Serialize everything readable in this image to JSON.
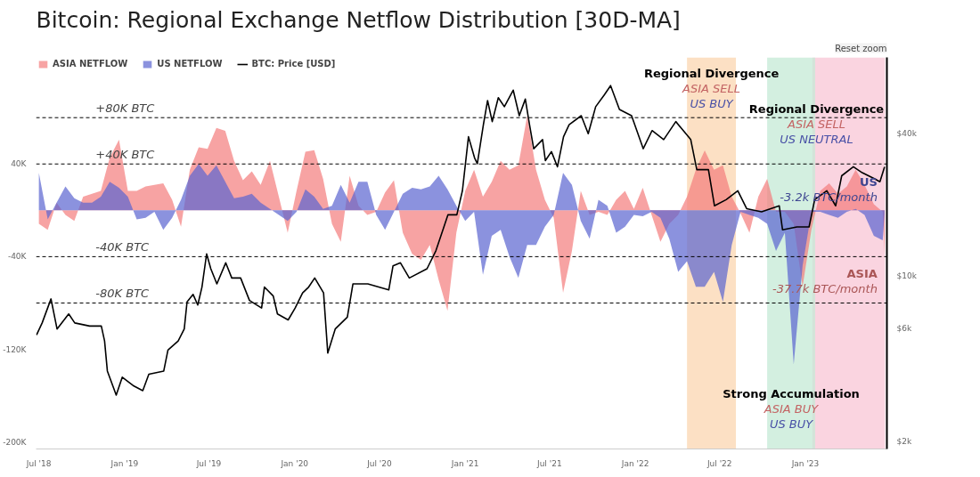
{
  "chart_data": {
    "type": "area",
    "title": "Bitcoin: Regional Exchange Netflow Distribution [30D-MA]",
    "annotations": [
      {
        "text": "US\n-3.2k BTC/month",
        "x": "2023-06-20",
        "y": -3200
      },
      {
        "text": "ASIA\n-37.7k BTC/month",
        "x": "2023-06-20",
        "y": -37700
      },
      "Reset zoom"
    ],
    "x": [
      "2018-07-01",
      "2018-07-20",
      "2018-08-08",
      "2018-08-27",
      "2018-09-15",
      "2018-10-04",
      "2018-10-23",
      "2018-11-11",
      "2018-11-30",
      "2018-12-20",
      "2019-01-08",
      "2019-01-27",
      "2019-02-15",
      "2019-03-06",
      "2019-03-25",
      "2019-04-13",
      "2019-05-02",
      "2019-05-21",
      "2019-06-09",
      "2019-06-28",
      "2019-07-17",
      "2019-08-05",
      "2019-08-24",
      "2019-09-12",
      "2019-10-01",
      "2019-10-20",
      "2019-11-09",
      "2019-11-28",
      "2019-12-17",
      "2020-01-05",
      "2020-01-24",
      "2020-02-12",
      "2020-03-02",
      "2020-03-21",
      "2020-04-09",
      "2020-04-28",
      "2020-05-17",
      "2020-06-05",
      "2020-06-24",
      "2020-07-13",
      "2020-08-01",
      "2020-08-20",
      "2020-09-09",
      "2020-09-28",
      "2020-10-17",
      "2020-11-05",
      "2020-11-24",
      "2020-12-13",
      "2021-01-01",
      "2021-01-20",
      "2021-02-08",
      "2021-02-27",
      "2021-03-18",
      "2021-04-06",
      "2021-04-25",
      "2021-05-14",
      "2021-06-02",
      "2021-06-21",
      "2021-07-10",
      "2021-07-30",
      "2021-08-18",
      "2021-09-06",
      "2021-09-25",
      "2021-10-14",
      "2021-11-02",
      "2021-11-21",
      "2021-12-10",
      "2021-12-29",
      "2022-01-17",
      "2022-02-05",
      "2022-02-24",
      "2022-03-15",
      "2022-04-03",
      "2022-04-22",
      "2022-05-11",
      "2022-05-30",
      "2022-06-19",
      "2022-07-08",
      "2022-07-27",
      "2022-08-15",
      "2022-09-03",
      "2022-09-22",
      "2022-10-11",
      "2022-10-30",
      "2022-11-18",
      "2022-12-07",
      "2022-12-26",
      "2023-01-14",
      "2023-02-02",
      "2023-02-21",
      "2023-03-12",
      "2023-03-31",
      "2023-04-19",
      "2023-05-08",
      "2023-05-28",
      "2023-06-16",
      "2023-06-20"
    ],
    "series": [
      {
        "name": "ASIA NETFLOW",
        "color": "#f47c7c",
        "values": [
          -11700,
          -16800,
          6500,
          -3900,
          -9100,
          11700,
          14200,
          16800,
          45300,
          60900,
          16800,
          16800,
          20700,
          22000,
          23300,
          9100,
          -14200,
          35000,
          54400,
          53100,
          71200,
          68600,
          42700,
          25900,
          33700,
          22000,
          42700,
          11700,
          -19400,
          16800,
          50500,
          52000,
          27200,
          -11700,
          -27200,
          29800,
          3900,
          -3900,
          -1300,
          15500,
          25900,
          -19400,
          -37600,
          -42700,
          -29800,
          -60000,
          -86800,
          -19400,
          16800,
          35000,
          11700,
          24600,
          42700,
          35000,
          38900,
          81600,
          35000,
          9100,
          -6500,
          -71200,
          -35000,
          16800,
          -3900,
          -1300,
          -3900,
          9100,
          16800,
          1300,
          19400,
          -3900,
          -27200,
          -11700,
          -3900,
          11700,
          35000,
          51800,
          35000,
          38900,
          11700,
          -2600,
          -19400,
          11700,
          27200,
          -1300,
          -1300,
          -11700,
          -66000,
          -16800,
          16800,
          23300,
          14200,
          20700,
          35000,
          22000,
          5200,
          -1300,
          -37700
        ]
      },
      {
        "name": "US NETFLOW",
        "color": "#5a64d0",
        "values": [
          32400,
          -7800,
          6500,
          20700,
          10400,
          6500,
          6500,
          11700,
          24600,
          19400,
          11700,
          -7800,
          -6500,
          -1300,
          -16800,
          -6500,
          9100,
          29800,
          40100,
          29800,
          38900,
          24600,
          10400,
          11700,
          14200,
          6500,
          1300,
          -3900,
          -9100,
          -1300,
          18100,
          11700,
          1300,
          3900,
          22000,
          6500,
          24600,
          24600,
          -3900,
          -16800,
          -1300,
          14200,
          19400,
          18100,
          20700,
          29800,
          18100,
          3900,
          -9100,
          -1300,
          -55700,
          -22000,
          -16800,
          -40100,
          -58300,
          -29800,
          -29800,
          -14200,
          -3900,
          32400,
          22000,
          -9100,
          -24600,
          9100,
          3900,
          -19400,
          -14200,
          -3900,
          -5200,
          -1300,
          -6500,
          -24600,
          -53100,
          -44000,
          -66000,
          -66000,
          -53100,
          -79000,
          -29800,
          -1300,
          -3900,
          -6500,
          -11700,
          -35000,
          -19400,
          -133000,
          -47900,
          -1300,
          -1300,
          -3900,
          -6500,
          -1300,
          1300,
          -3900,
          -22000,
          -25900,
          -3200
        ]
      },
      {
        "name": "BTC: Price [USD]",
        "type": "line",
        "axis": "y2",
        "color": "#000000",
        "x": [
          "2018-06-26",
          "2018-07-08",
          "2018-07-27",
          "2018-08-09",
          "2018-09-03",
          "2018-09-16",
          "2018-10-18",
          "2018-11-12",
          "2018-11-19",
          "2018-11-25",
          "2018-12-14",
          "2018-12-27",
          "2019-01-21",
          "2019-02-09",
          "2019-02-22",
          "2019-03-26",
          "2019-04-04",
          "2019-04-26",
          "2019-05-09",
          "2019-05-15",
          "2019-05-28",
          "2019-06-07",
          "2019-06-16",
          "2019-06-26",
          "2019-07-05",
          "2019-07-18",
          "2019-08-06",
          "2019-08-19",
          "2019-09-07",
          "2019-09-26",
          "2019-10-22",
          "2019-10-28",
          "2019-11-16",
          "2019-11-25",
          "2019-12-18",
          "2020-01-02",
          "2020-01-18",
          "2020-01-31",
          "2020-02-13",
          "2020-03-03",
          "2020-03-12",
          "2020-03-28",
          "2020-04-23",
          "2020-05-05",
          "2020-06-06",
          "2020-07-21",
          "2020-07-30",
          "2020-08-15",
          "2020-09-03",
          "2020-10-11",
          "2020-10-30",
          "2020-11-25",
          "2020-12-14",
          "2020-12-26",
          "2021-01-08",
          "2021-01-21",
          "2021-01-27",
          "2021-02-09",
          "2021-02-18",
          "2021-02-28",
          "2021-03-13",
          "2021-03-26",
          "2021-04-14",
          "2021-04-27",
          "2021-05-10",
          "2021-05-19",
          "2021-05-28",
          "2021-06-16",
          "2021-06-22",
          "2021-07-05",
          "2021-07-18",
          "2021-07-31",
          "2021-08-12",
          "2021-09-07",
          "2021-09-22",
          "2021-10-08",
          "2021-10-27",
          "2021-11-09",
          "2021-11-28",
          "2021-12-24",
          "2022-01-18",
          "2022-02-06",
          "2022-03-03",
          "2022-03-29",
          "2022-04-30",
          "2022-05-13",
          "2022-06-07",
          "2022-06-20",
          "2022-07-15",
          "2022-08-09",
          "2022-08-28",
          "2022-09-29",
          "2022-11-06",
          "2022-11-13",
          "2022-12-14",
          "2023-01-09",
          "2023-01-21",
          "2023-02-16",
          "2023-03-07",
          "2023-03-20",
          "2023-04-14",
          "2023-05-03",
          "2023-05-29",
          "2023-06-10",
          "2023-06-20"
        ],
        "values": [
          5640,
          6340,
          8010,
          5980,
          6920,
          6340,
          6150,
          6150,
          5320,
          3970,
          3140,
          3740,
          3430,
          3280,
          3850,
          3970,
          4870,
          5320,
          5980,
          7780,
          8370,
          7550,
          8990,
          12420,
          10740,
          9270,
          11380,
          9820,
          9820,
          7890,
          7330,
          8990,
          8240,
          6920,
          6530,
          7330,
          8490,
          8990,
          9820,
          8490,
          4730,
          5980,
          6710,
          9270,
          9270,
          8750,
          11040,
          11380,
          9820,
          10740,
          12790,
          18160,
          18160,
          22960,
          38830,
          31620,
          29850,
          43650,
          55200,
          44980,
          56750,
          52000,
          61090,
          47640,
          55980,
          43650,
          34550,
          37760,
          30760,
          33570,
          28970,
          38830,
          43650,
          47640,
          39990,
          52000,
          58480,
          63830,
          50580,
          47640,
          34550,
          41210,
          37760,
          44980,
          37760,
          28180,
          28180,
          19820,
          21040,
          22960,
          19280,
          18710,
          19820,
          15700,
          16140,
          16140,
          21040,
          22960,
          19820,
          26550,
          28970,
          27350,
          25820,
          25060,
          28970
        ]
      }
    ],
    "xlim": [
      "2018-06-25",
      "2023-06-25"
    ],
    "xticks": [
      {
        "value": "2018-07-01",
        "label": "Jul '18"
      },
      {
        "value": "2019-01-01",
        "label": "Jan '19"
      },
      {
        "value": "2019-07-01",
        "label": "Jul '19"
      },
      {
        "value": "2020-01-01",
        "label": "Jan '20"
      },
      {
        "value": "2020-07-01",
        "label": "Jul '20"
      },
      {
        "value": "2021-01-01",
        "label": "Jan '21"
      },
      {
        "value": "2021-07-01",
        "label": "Jul '21"
      },
      {
        "value": "2022-01-01",
        "label": "Jan '22"
      },
      {
        "value": "2022-07-01",
        "label": "Jul '22"
      },
      {
        "value": "2023-01-01",
        "label": "Jan '23"
      }
    ],
    "ylim": [
      -206000,
      132000
    ],
    "yticks": [
      {
        "value": 40000,
        "label": "40K"
      },
      {
        "value": -40000,
        "label": "-40K"
      },
      {
        "value": -120000,
        "label": "-120K"
      },
      {
        "value": -200000,
        "label": "-200K"
      }
    ],
    "y2lim": [
      1860,
      84000
    ],
    "y2ticks": [
      {
        "value": 40000,
        "label": "$40k"
      },
      {
        "value": 10000,
        "label": "$10k"
      },
      {
        "value": 6000,
        "label": "$6k"
      },
      {
        "value": 2000,
        "label": "$2k"
      }
    ],
    "log": "y2",
    "legend": "top",
    "ref_lines": [
      {
        "axis": "y",
        "value": 80000,
        "label": "+80K BTC",
        "color": "#000000",
        "line_style": "dashed"
      },
      {
        "axis": "y",
        "value": 40000,
        "label": "+40K BTC",
        "color": "#000000",
        "line_style": "dashed"
      },
      {
        "axis": "y",
        "value": -40000,
        "label": "-40K BTC",
        "color": "#000000",
        "line_style": "dashed"
      },
      {
        "axis": "y",
        "value": -80000,
        "label": "-80K BTC",
        "color": "#000000",
        "line_style": "dashed"
      }
    ],
    "bands": [
      {
        "axis": "x",
        "from": "2022-04-22",
        "to": "2022-08-05",
        "color": "#fbd5b0",
        "label": "Regional Divergence\nASIA SELL\nUS BUY"
      },
      {
        "axis": "x",
        "from": "2023-01-16",
        "to": "2023-06-21",
        "color": "#f8c6d6",
        "label": "Regional Divergence\nASIA SELL\nUS NEUTRAL"
      },
      {
        "axis": "x",
        "from": "2022-10-11",
        "to": "2023-01-22",
        "color": "#c4ead6",
        "label": "Strong Accumulation\nASIA BUY\nUS BUY"
      }
    ]
  }
}
